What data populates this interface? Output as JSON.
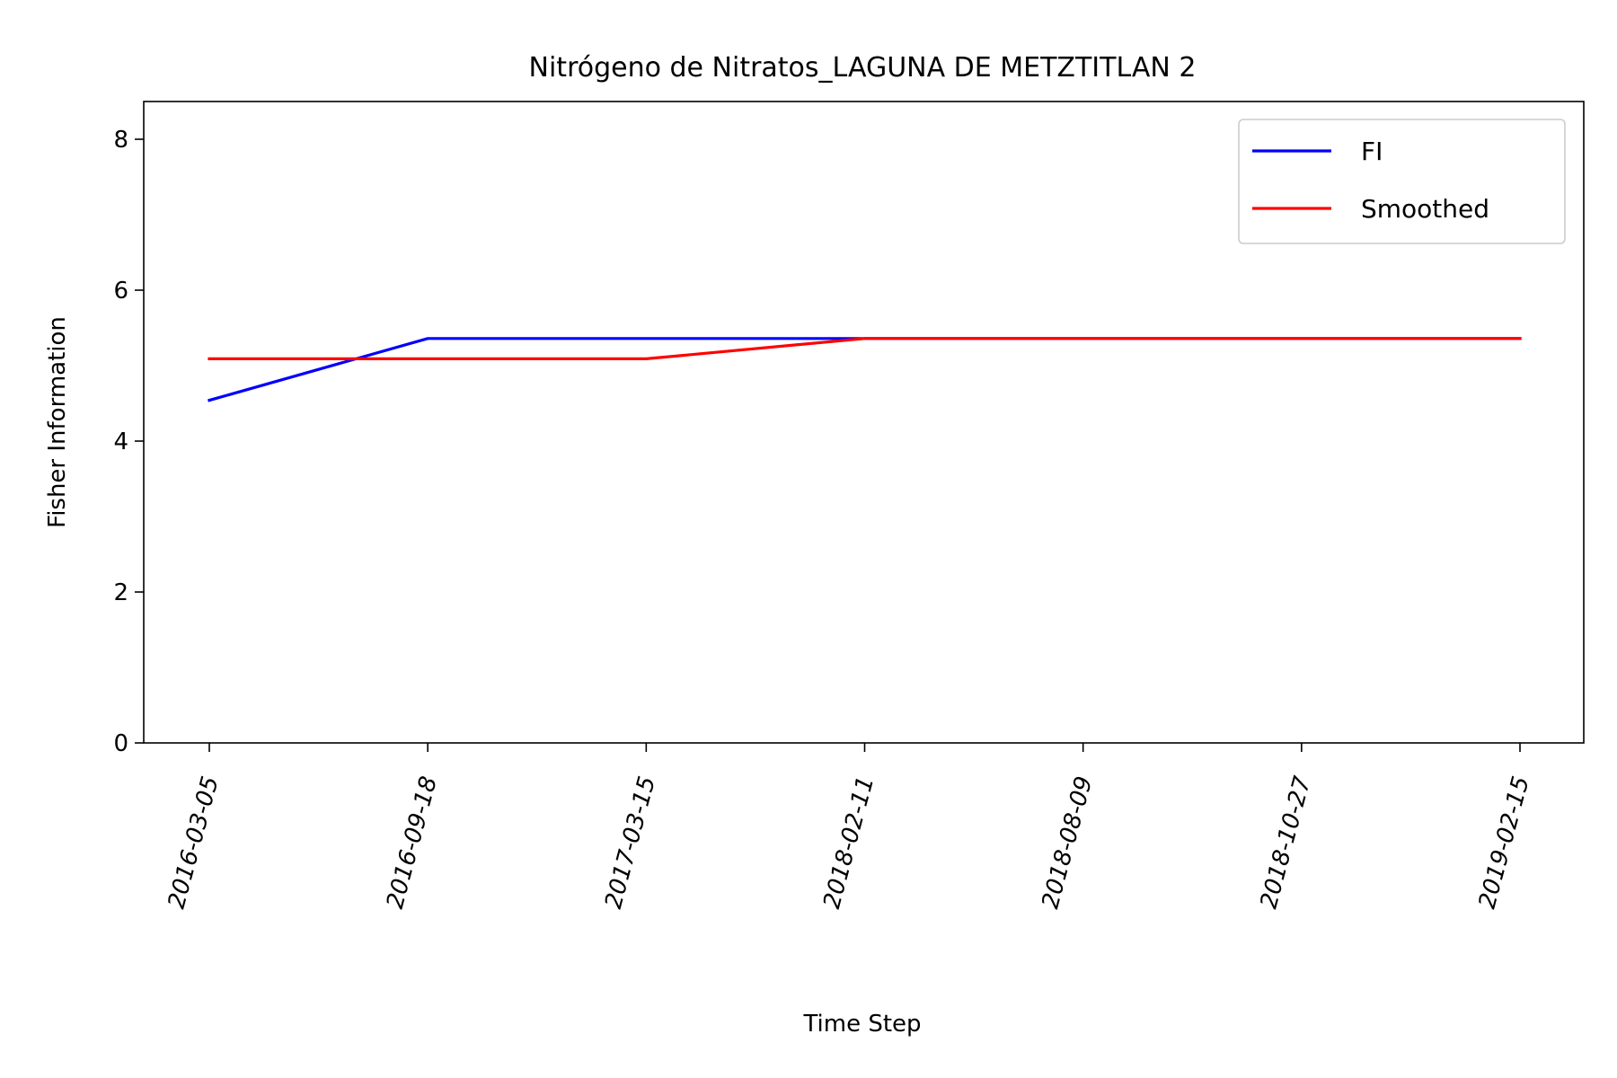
{
  "chart_data": {
    "type": "line",
    "title": "Nitrógeno de Nitratos_LAGUNA DE METZTITLAN 2",
    "xlabel": "Time Step",
    "ylabel": "Fisher Information",
    "categories": [
      "2016-03-05",
      "2016-09-18",
      "2017-03-15",
      "2018-02-11",
      "2018-08-09",
      "2018-10-27",
      "2019-02-15"
    ],
    "ylim": [
      0,
      8.5
    ],
    "yticks": [
      0,
      2,
      4,
      6,
      8
    ],
    "series": [
      {
        "name": "FI",
        "color": "#0000ff",
        "values": [
          4.54,
          5.36,
          5.36,
          5.36,
          5.36,
          5.36,
          5.36
        ]
      },
      {
        "name": "Smoothed",
        "color": "#ff0000",
        "values": [
          5.09,
          5.09,
          5.09,
          5.36,
          5.36,
          5.36,
          5.36
        ]
      }
    ],
    "legend_position": "top-right",
    "grid": false
  }
}
